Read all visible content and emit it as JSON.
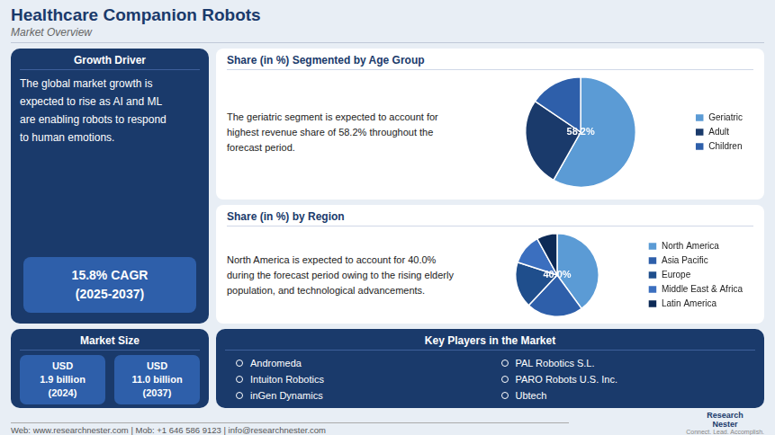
{
  "title": "Healthcare Companion Robots",
  "subtitle": "Market Overview",
  "annotations": [
    "Growth Driver",
    "The global market growth is\nexpected to rise as AI and ML\nare enabling robots to respond\nto human emotions.",
    "15.8% CAGR\n(2025-2037)",
    "Market Size",
    "USD\n1.9 billion\n(2024)",
    "USD\n11.0 billion\n(2037)",
    "Key Players in the Market",
    "Andromeda",
    "Intuiton Robotics",
    "inGen Dynamics",
    "PAL Robotics S.L.",
    "PARO Robots U.S. Inc.",
    "Ubtech",
    "Web: www.researchnester.com  |  Mob: +1 646 586 9123  |  info@researchnester.com",
    "Research\nNester",
    "Connect. Lead. Accomplish."
  ],
  "chart_data": [
    {
      "type": "pie",
      "title": "Share (in %) Segmented by Age Group",
      "annotations": [
        "The geriatric segment is expected to account for\nhighest revenue share of 58.2% throughout the\nforecast period.",
        "58.2%"
      ],
      "categories": [
        "Geriatric",
        "Adult",
        "Children"
      ],
      "values": [
        58.2,
        26.3,
        15.5
      ],
      "colors": [
        "#5b9bd5",
        "#1a3a6b",
        "#2e5faa"
      ],
      "legend": "right"
    },
    {
      "type": "pie",
      "title": "Share (in %) by Region",
      "annotations": [
        "North America is expected to account for 40.0%\nduring the forecast period owing to the rising elderly\npopulation, and technological advancements.",
        "40.0%"
      ],
      "categories": [
        "North America",
        "Asia Pacific",
        "Europe",
        "Middle East & Africa",
        "Latin America"
      ],
      "values": [
        40.0,
        22.0,
        18.0,
        12.0,
        8.0
      ],
      "colors": [
        "#5b9bd5",
        "#2e5faa",
        "#1f4e8c",
        "#3b6fbf",
        "#0d2a56"
      ],
      "legend": "right"
    }
  ]
}
